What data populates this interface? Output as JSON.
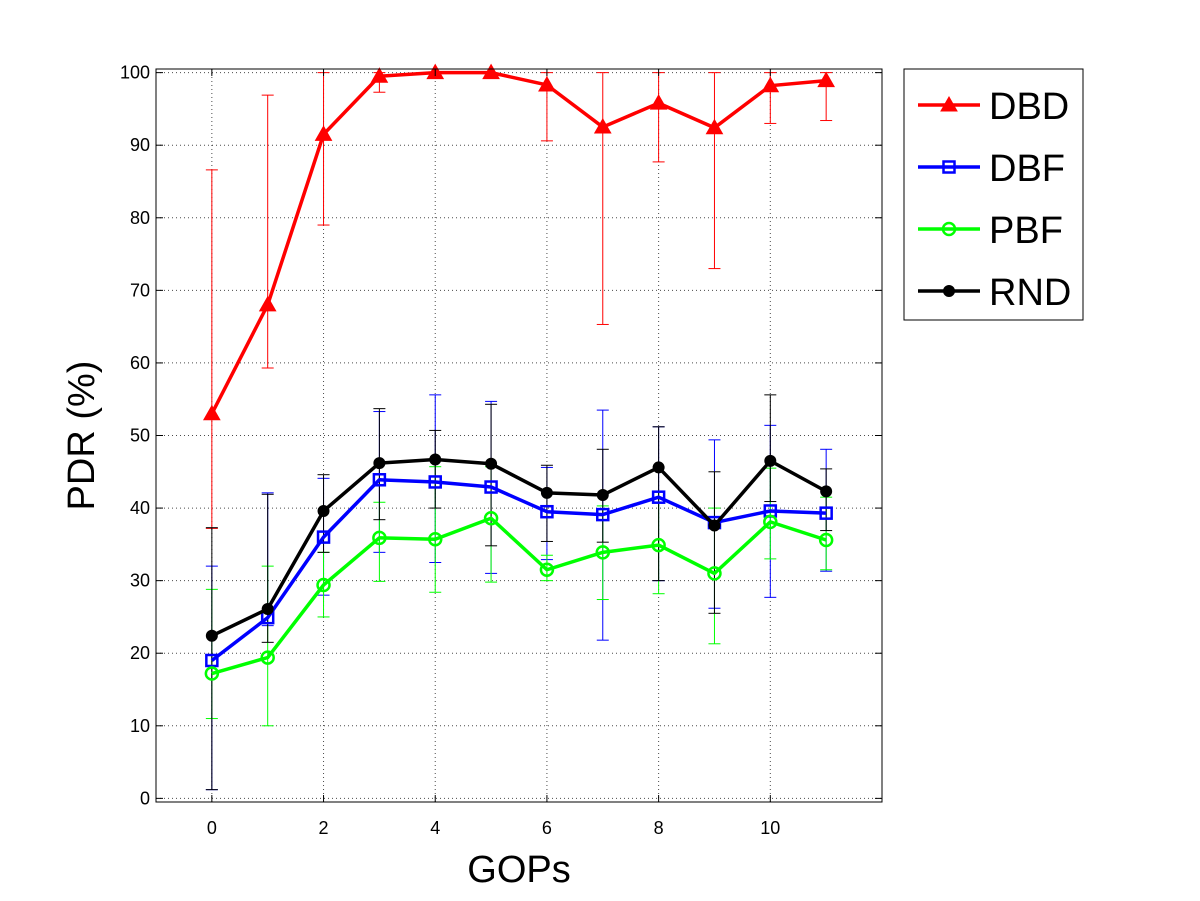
{
  "chart_data": {
    "type": "line",
    "xlabel": "GOPs",
    "ylabel": "PDR (%)",
    "xlim": [
      -1,
      12
    ],
    "ylim": [
      -0.5,
      100.5
    ],
    "xticks": [
      0,
      2,
      4,
      6,
      8,
      10
    ],
    "yticks": [
      0,
      10,
      20,
      30,
      40,
      50,
      60,
      70,
      80,
      90,
      100
    ],
    "grid": true,
    "grid_style": "dotted",
    "legend_position": "outside-top-right",
    "x": [
      0,
      1,
      2,
      3,
      4,
      5,
      6,
      7,
      8,
      9,
      10,
      11
    ],
    "series": [
      {
        "name": "DBD",
        "color": "#ff0000",
        "marker": "triangle",
        "values": [
          53,
          68,
          91.5,
          99.5,
          100,
          100,
          98.3,
          92.5,
          95.8,
          92.4,
          98.2,
          98.9
        ],
        "err_low": [
          37.2,
          59.3,
          79,
          97.3,
          100,
          100,
          90.6,
          65.3,
          87.7,
          73,
          93,
          93.4
        ],
        "err_high": [
          86.6,
          96.9,
          100,
          100,
          100,
          100,
          100,
          100,
          100,
          100,
          100,
          100
        ]
      },
      {
        "name": "DBF",
        "color": "#0000ff",
        "marker": "square",
        "values": [
          19,
          24.9,
          36,
          43.9,
          43.6,
          42.9,
          39.5,
          39.1,
          41.5,
          38,
          39.6,
          39.3
        ],
        "err_low": [
          1.2,
          23.8,
          28,
          33.9,
          32.5,
          31,
          32.9,
          21.8,
          30,
          26.2,
          27.7,
          31.3
        ],
        "err_high": [
          32,
          42.1,
          44.1,
          53.3,
          55.6,
          54.7,
          45.6,
          53.5,
          51.2,
          49.4,
          51.4,
          48.1
        ]
      },
      {
        "name": "PBF",
        "color": "#00ff00",
        "marker": "circle",
        "values": [
          17.2,
          19.4,
          29.4,
          35.9,
          35.7,
          38.6,
          31.5,
          33.9,
          34.9,
          31,
          38.1,
          35.6
        ],
        "err_low": [
          11,
          10,
          25,
          29.9,
          28.4,
          29.8,
          30,
          27.4,
          28.2,
          21.3,
          33,
          31.5
        ],
        "err_high": [
          28.8,
          32,
          33.9,
          40.8,
          45.7,
          45.7,
          33.5,
          40.3,
          42.2,
          40,
          45.5,
          41.5
        ]
      },
      {
        "name": "RND",
        "color": "#000000",
        "marker": "dot",
        "values": [
          22.4,
          26.1,
          39.6,
          46.2,
          46.7,
          46.1,
          42.1,
          41.8,
          45.6,
          37.6,
          46.5,
          42.3
        ],
        "err_low": [
          1.2,
          21.5,
          33.9,
          38.4,
          40,
          34.8,
          35.4,
          35.3,
          30,
          25.5,
          40.9,
          36.9
        ],
        "err_high": [
          37.3,
          41.9,
          44.6,
          53.7,
          50.7,
          54.3,
          45.9,
          48.1,
          51.2,
          45,
          55.6,
          45.4
        ]
      }
    ]
  }
}
